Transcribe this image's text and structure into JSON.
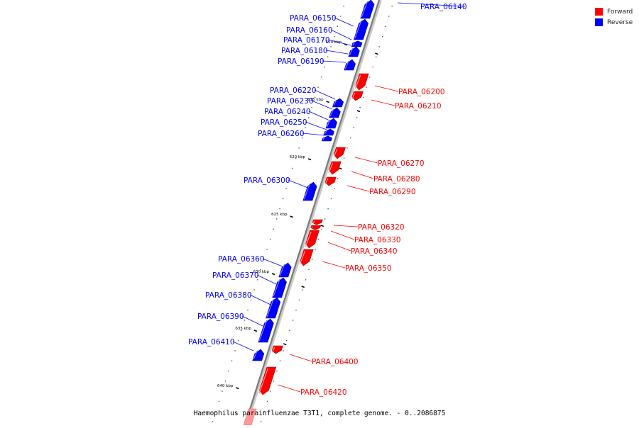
{
  "colors": {
    "forward": "#ff0000",
    "reverse": "#0000ff",
    "axis": "#808080",
    "label_line_forward": "#ff0000",
    "label_line_reverse": "#0000ff"
  },
  "legend": [
    {
      "label": "Forward",
      "color": "#ff0000"
    },
    {
      "label": "Reverse",
      "color": "#0000ff"
    }
  ],
  "caption": "Haemophilus parainfluenzae T3T1, complete genome. - 0..2086875",
  "scale_labels": [
    "610 kbp",
    "615 kbp",
    "620 kbp",
    "625 kbp",
    "630 kbp",
    "635 kbp",
    "640 kbp"
  ],
  "genes": [
    {
      "id": "PARA_06140",
      "strand": "reverse"
    },
    {
      "id": "PARA_06150",
      "strand": "reverse"
    },
    {
      "id": "PARA_06160",
      "strand": "reverse"
    },
    {
      "id": "PARA_06170",
      "strand": "reverse"
    },
    {
      "id": "PARA_06180",
      "strand": "reverse"
    },
    {
      "id": "PARA_06190",
      "strand": "reverse"
    },
    {
      "id": "PARA_06200",
      "strand": "forward"
    },
    {
      "id": "PARA_06210",
      "strand": "forward"
    },
    {
      "id": "PARA_06220",
      "strand": "reverse"
    },
    {
      "id": "PARA_06230",
      "strand": "reverse"
    },
    {
      "id": "PARA_06240",
      "strand": "reverse"
    },
    {
      "id": "PARA_06250",
      "strand": "reverse"
    },
    {
      "id": "PARA_06260",
      "strand": "reverse"
    },
    {
      "id": "PARA_06270",
      "strand": "forward"
    },
    {
      "id": "PARA_06280",
      "strand": "forward"
    },
    {
      "id": "PARA_06290",
      "strand": "forward"
    },
    {
      "id": "PARA_06300",
      "strand": "reverse"
    },
    {
      "id": "PARA_06320",
      "strand": "forward"
    },
    {
      "id": "PARA_06330",
      "strand": "forward"
    },
    {
      "id": "PARA_06340",
      "strand": "forward"
    },
    {
      "id": "PARA_06350",
      "strand": "forward"
    },
    {
      "id": "PARA_06360",
      "strand": "reverse"
    },
    {
      "id": "PARA_06370",
      "strand": "reverse"
    },
    {
      "id": "PARA_06380",
      "strand": "reverse"
    },
    {
      "id": "PARA_06390",
      "strand": "reverse"
    },
    {
      "id": "PARA_06400",
      "strand": "forward"
    },
    {
      "id": "PARA_06410",
      "strand": "reverse"
    },
    {
      "id": "PARA_06420",
      "strand": "forward"
    }
  ]
}
